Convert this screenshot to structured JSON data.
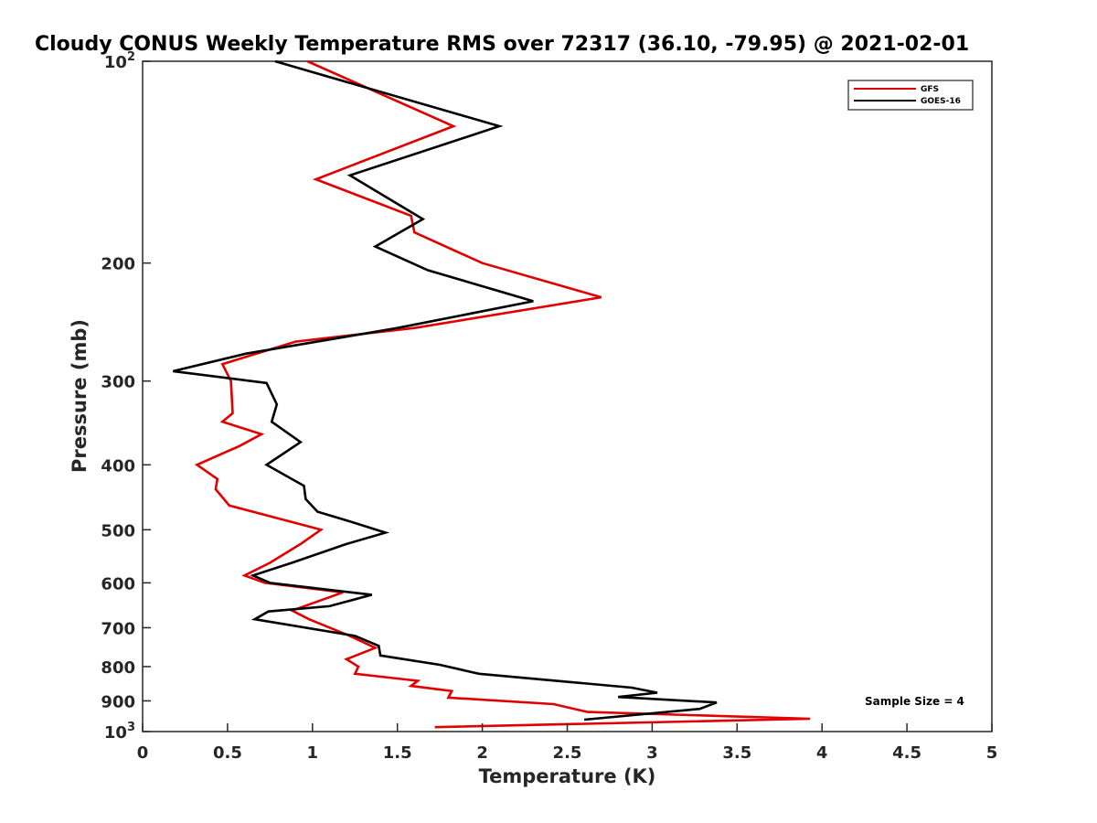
{
  "chart_data": {
    "type": "line",
    "title": "Cloudy CONUS Weekly Temperature RMS over 72317 (36.10, -79.95) @ 2021-02-01",
    "xlabel": "Temperature (K)",
    "ylabel": "Pressure (mb)",
    "xlim": [
      0,
      5
    ],
    "ylim": [
      1000,
      100
    ],
    "yscale": "log",
    "y_reversed": true,
    "grid": false,
    "legend_position": "top-right",
    "x_ticks": [
      0,
      0.5,
      1,
      1.5,
      2,
      2.5,
      3,
      3.5,
      4,
      4.5,
      5
    ],
    "x_tick_labels": [
      "0",
      "0.5",
      "1",
      "1.5",
      "2",
      "2.5",
      "3",
      "3.5",
      "4",
      "4.5",
      "5"
    ],
    "y_ticks": [
      100,
      200,
      300,
      400,
      500,
      600,
      700,
      800,
      900,
      1000
    ],
    "y_tick_labels": [
      "10^2",
      "200",
      "300",
      "400",
      "500",
      "600",
      "700",
      "800",
      "900",
      "10^3"
    ],
    "annotation": "Sample Size = 4",
    "series": [
      {
        "name": "GFS",
        "color": "#e00000",
        "points": [
          [
            0.97,
            100
          ],
          [
            1.83,
            125
          ],
          [
            1.02,
            150
          ],
          [
            1.58,
            170
          ],
          [
            1.6,
            180
          ],
          [
            2.0,
            200
          ],
          [
            2.7,
            225
          ],
          [
            1.6,
            250
          ],
          [
            0.9,
            262
          ],
          [
            0.47,
            283
          ],
          [
            0.52,
            300
          ],
          [
            0.53,
            335
          ],
          [
            0.47,
            345
          ],
          [
            0.7,
            360
          ],
          [
            0.57,
            375
          ],
          [
            0.32,
            400
          ],
          [
            0.44,
            420
          ],
          [
            0.43,
            435
          ],
          [
            0.51,
            460
          ],
          [
            1.05,
            500
          ],
          [
            0.93,
            525
          ],
          [
            0.75,
            560
          ],
          [
            0.6,
            585
          ],
          [
            0.72,
            600
          ],
          [
            1.18,
            620
          ],
          [
            0.88,
            660
          ],
          [
            0.98,
            680
          ],
          [
            1.22,
            720
          ],
          [
            1.37,
            750
          ],
          [
            1.2,
            780
          ],
          [
            1.27,
            800
          ],
          [
            1.25,
            820
          ],
          [
            1.62,
            840
          ],
          [
            1.58,
            855
          ],
          [
            1.82,
            870
          ],
          [
            1.8,
            890
          ],
          [
            2.42,
            910
          ],
          [
            2.62,
            935
          ],
          [
            3.93,
            957
          ],
          [
            1.72,
            985
          ]
        ]
      },
      {
        "name": "GOES-16",
        "color": "#000000",
        "points": [
          [
            0.78,
            100
          ],
          [
            2.1,
            125
          ],
          [
            1.22,
            148
          ],
          [
            1.65,
            172
          ],
          [
            1.37,
            189
          ],
          [
            1.68,
            205
          ],
          [
            2.3,
            228
          ],
          [
            1.5,
            250
          ],
          [
            0.61,
            273
          ],
          [
            0.18,
            290
          ],
          [
            0.73,
            302
          ],
          [
            0.79,
            325
          ],
          [
            0.76,
            345
          ],
          [
            0.93,
            370
          ],
          [
            0.73,
            400
          ],
          [
            0.95,
            430
          ],
          [
            0.96,
            450
          ],
          [
            1.03,
            470
          ],
          [
            1.21,
            485
          ],
          [
            1.43,
            505
          ],
          [
            1.2,
            525
          ],
          [
            0.88,
            560
          ],
          [
            0.65,
            585
          ],
          [
            0.75,
            600
          ],
          [
            1.35,
            625
          ],
          [
            1.1,
            650
          ],
          [
            0.74,
            662
          ],
          [
            0.66,
            680
          ],
          [
            1.25,
            720
          ],
          [
            1.39,
            745
          ],
          [
            1.4,
            770
          ],
          [
            1.75,
            795
          ],
          [
            1.98,
            820
          ],
          [
            2.55,
            845
          ],
          [
            2.88,
            860
          ],
          [
            3.03,
            875
          ],
          [
            2.8,
            888
          ],
          [
            3.38,
            905
          ],
          [
            3.28,
            925
          ],
          [
            2.6,
            960
          ]
        ]
      }
    ]
  }
}
